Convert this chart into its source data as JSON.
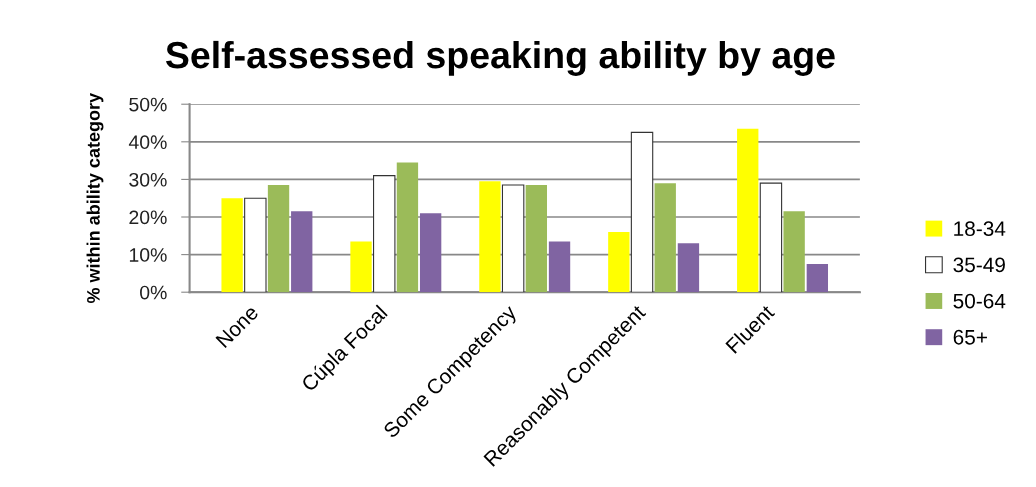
{
  "chart_data": {
    "type": "bar",
    "title": "Self-assessed speaking ability by age",
    "ylabel": "% within ability category",
    "categories": [
      "None",
      "Cúpla Focal",
      "Some Competency",
      "Reasonably Competent",
      "Fluent"
    ],
    "series": [
      {
        "name": "18-34",
        "color": "#ffff00",
        "values": [
          25,
          13.5,
          29.5,
          16,
          43.5
        ]
      },
      {
        "name": "35-49",
        "color": "#ffffff",
        "values": [
          25,
          31,
          28.5,
          42.5,
          29
        ]
      },
      {
        "name": "50-64",
        "color": "#9bbb59",
        "values": [
          28.5,
          34.5,
          28.5,
          29,
          21.5
        ]
      },
      {
        "name": "65+",
        "color": "#8064a2",
        "values": [
          21.5,
          21,
          13.5,
          13,
          7.5
        ]
      }
    ],
    "ylim": [
      0,
      50
    ],
    "yticks": [
      {
        "value": 0,
        "label": "0%"
      },
      {
        "value": 10,
        "label": "10%"
      },
      {
        "value": 20,
        "label": "20%"
      },
      {
        "value": 30,
        "label": "30%"
      },
      {
        "value": 40,
        "label": "40%"
      },
      {
        "value": 50,
        "label": "50%"
      }
    ],
    "grid": "y",
    "legend": "right"
  }
}
